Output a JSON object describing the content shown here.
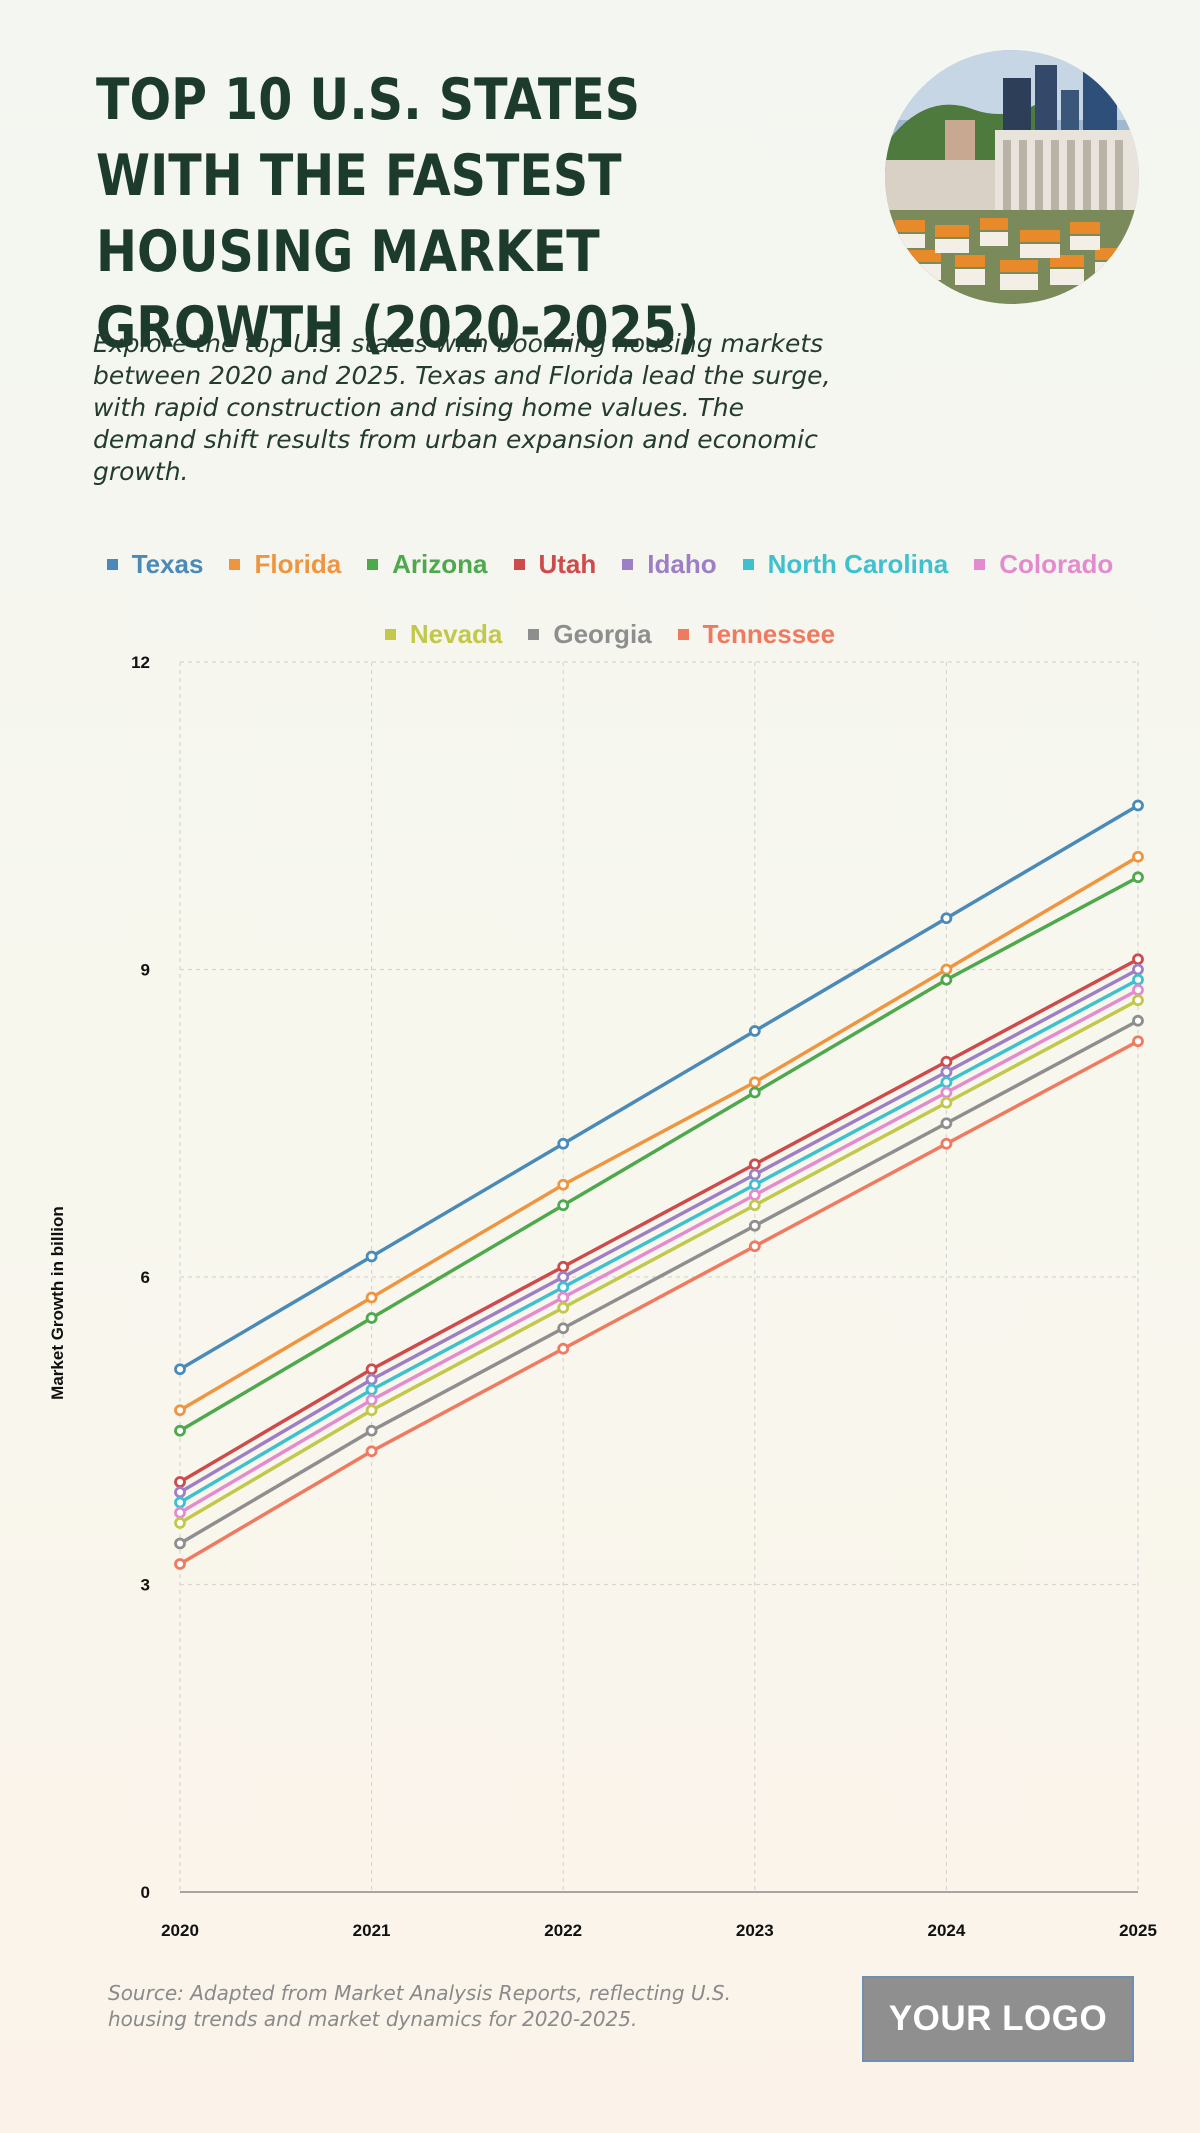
{
  "header": {
    "title": "TOP 10 U.S. STATES WITH THE FASTEST HOUSING MARKET GROWTH (2020-2025)",
    "subtitle": "Explore the top U.S. states with booming housing markets between 2020 and 2025. Texas and Florida lead the surge, with rapid construction and rising home values. The demand shift results from urban expansion and economic growth."
  },
  "footer": {
    "source": "Source: Adapted from Market Analysis Reports, reflecting U.S. housing trends and market dynamics for 2020-2025.",
    "logo": "YOUR LOGO"
  },
  "chart_data": {
    "type": "line",
    "title": "TOP 10 U.S. STATES WITH THE FASTEST HOUSING MARKET GROWTH (2020-2025)",
    "xlabel": "",
    "ylabel": "Market Growth in billion",
    "x": [
      "2020",
      "2021",
      "2022",
      "2023",
      "2024",
      "2025"
    ],
    "ylim": [
      0,
      12
    ],
    "yticks": [
      0,
      3,
      6,
      9,
      12
    ],
    "grid": true,
    "legend_position": "top",
    "series": [
      {
        "name": "Texas",
        "color": "#4a8ab8",
        "values": [
          5.1,
          6.2,
          7.3,
          8.4,
          9.5,
          10.6
        ]
      },
      {
        "name": "Florida",
        "color": "#f0953f",
        "values": [
          4.7,
          5.8,
          6.9,
          7.9,
          9.0,
          10.1
        ]
      },
      {
        "name": "Arizona",
        "color": "#4ea84c",
        "values": [
          4.5,
          5.6,
          6.7,
          7.8,
          8.9,
          9.9
        ]
      },
      {
        "name": "Utah",
        "color": "#cf4a4a",
        "values": [
          4.0,
          5.1,
          6.1,
          7.1,
          8.1,
          9.1
        ]
      },
      {
        "name": "Idaho",
        "color": "#9e7fc6",
        "values": [
          3.9,
          5.0,
          6.0,
          7.0,
          8.0,
          9.0
        ]
      },
      {
        "name": "North Carolina",
        "color": "#3ec1cf",
        "values": [
          3.8,
          4.9,
          5.9,
          6.9,
          7.9,
          8.9
        ]
      },
      {
        "name": "Colorado",
        "color": "#e48bcf",
        "values": [
          3.7,
          4.8,
          5.8,
          6.8,
          7.8,
          8.8
        ]
      },
      {
        "name": "Nevada",
        "color": "#c2c84a",
        "values": [
          3.6,
          4.7,
          5.7,
          6.7,
          7.7,
          8.7
        ]
      },
      {
        "name": "Georgia",
        "color": "#8e8e8e",
        "values": [
          3.4,
          4.5,
          5.5,
          6.5,
          7.5,
          8.5
        ]
      },
      {
        "name": "Tennessee",
        "color": "#ef7a60",
        "values": [
          3.2,
          4.3,
          5.3,
          6.3,
          7.3,
          8.3
        ]
      }
    ]
  }
}
